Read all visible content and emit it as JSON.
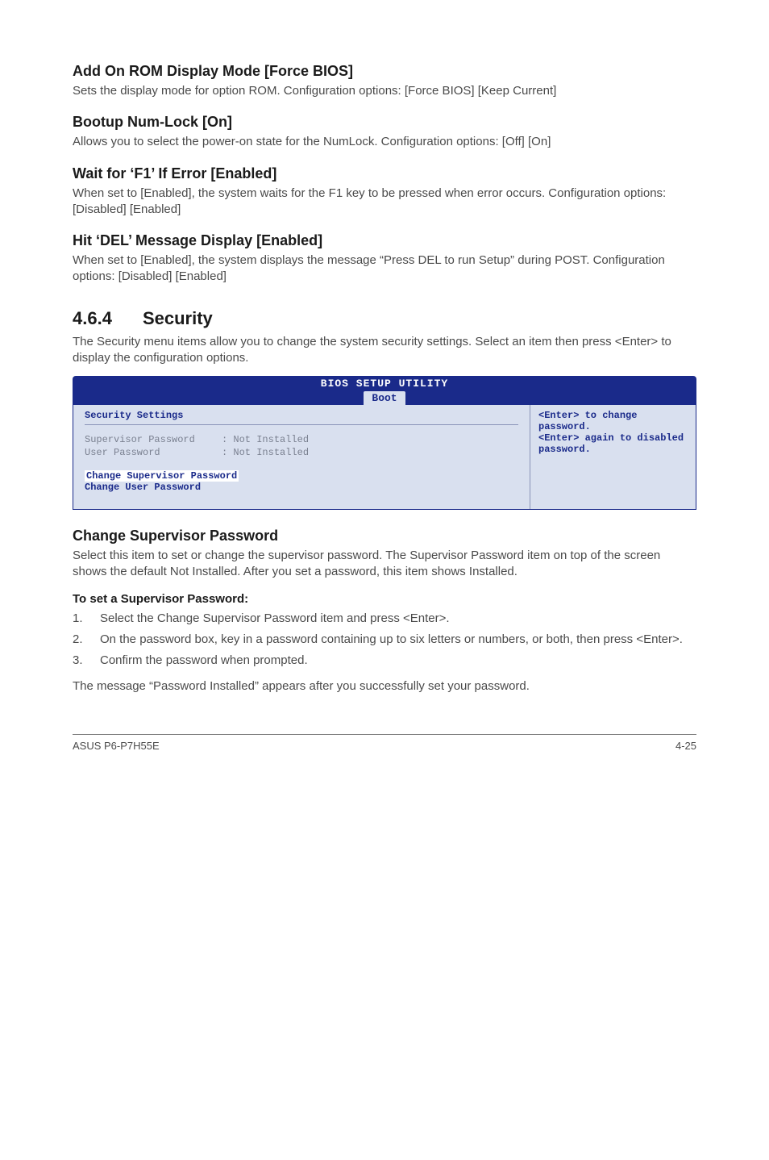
{
  "sections": {
    "addOnRom": {
      "heading": "Add On ROM Display Mode [Force BIOS]",
      "body": "Sets the display mode for option ROM. Configuration options: [Force BIOS] [Keep Current]"
    },
    "bootupNum": {
      "heading": "Bootup Num-Lock [On]",
      "body": "Allows you to select the power-on state for the NumLock. Configuration options: [Off] [On]"
    },
    "waitF1": {
      "heading": "Wait for ‘F1’ If Error [Enabled]",
      "body": "When set to [Enabled], the system waits for the F1 key to be pressed when error occurs. Configuration options: [Disabled] [Enabled]"
    },
    "hitDel": {
      "heading": "Hit ‘DEL’ Message Display [Enabled]",
      "body": "When set to [Enabled], the system displays the message “Press DEL to run Setup” during POST. Configuration options: [Disabled] [Enabled]"
    }
  },
  "securitySection": {
    "number": "4.6.4",
    "title": "Security",
    "intro": "The Security menu items allow you to change the system security settings. Select an item then press <Enter> to display the configuration options."
  },
  "bios": {
    "headerTitle": "BIOS SETUP UTILITY",
    "tab": "Boot",
    "panelTitle": "Security Settings",
    "rows": {
      "sup": {
        "label": "Supervisor Password",
        "value": "Not Installed"
      },
      "usr": {
        "label": "User Password",
        "value": "Not Installed"
      }
    },
    "highlight1": "Change Supervisor Password",
    "highlight2": "Change User Password",
    "help": "<Enter> to change password.\n<Enter> again to disabled password."
  },
  "changeSup": {
    "heading": "Change Supervisor Password",
    "body": "Select this item to set or change the supervisor password. The Supervisor Password item on top of the screen shows the default Not Installed. After you set a password, this item shows Installed.",
    "toSet": "To set a Supervisor Password:",
    "steps": {
      "s1": "Select the Change Supervisor Password item and press <Enter>.",
      "s2": "On the password box, key in a password containing up to six letters or numbers, or both, then press <Enter>.",
      "s3": "Confirm the password when prompted."
    },
    "after": "The message “Password Installed” appears after you successfully set your password."
  },
  "footer": {
    "left": "ASUS P6-P7H55E",
    "right": "4-25"
  }
}
